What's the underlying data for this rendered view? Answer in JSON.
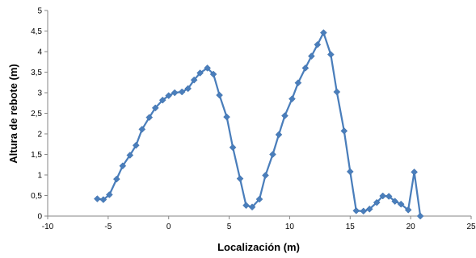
{
  "chart_data": {
    "type": "line",
    "xlabel": "Localización (m)",
    "ylabel": "Altura de rebote (m)",
    "xlim": [
      -10,
      25
    ],
    "ylim": [
      0,
      5
    ],
    "x_ticks": [
      "-10",
      "-5",
      "0",
      "5",
      "10",
      "15",
      "20",
      "25"
    ],
    "y_ticks": [
      "0",
      "0,5",
      "1",
      "1,5",
      "2",
      "2,5",
      "3",
      "3,5",
      "4",
      "4,5",
      "5"
    ],
    "grid": false,
    "legend": "none",
    "series": [
      {
        "color": "#4a7ebb",
        "marker": "diamond",
        "points": [
          [
            -5.9,
            0.42
          ],
          [
            -5.4,
            0.4
          ],
          [
            -4.9,
            0.52
          ],
          [
            -4.3,
            0.9
          ],
          [
            -3.8,
            1.22
          ],
          [
            -3.2,
            1.48
          ],
          [
            -2.7,
            1.72
          ],
          [
            -2.2,
            2.11
          ],
          [
            -1.6,
            2.4
          ],
          [
            -1.1,
            2.63
          ],
          [
            -0.5,
            2.82
          ],
          [
            0.0,
            2.93
          ],
          [
            0.5,
            3.0
          ],
          [
            1.1,
            3.02
          ],
          [
            1.6,
            3.1
          ],
          [
            2.1,
            3.31
          ],
          [
            2.6,
            3.48
          ],
          [
            3.2,
            3.6
          ],
          [
            3.7,
            3.45
          ],
          [
            4.2,
            2.94
          ],
          [
            4.8,
            2.41
          ],
          [
            5.3,
            1.67
          ],
          [
            5.9,
            0.91
          ],
          [
            6.4,
            0.26
          ],
          [
            6.9,
            0.22
          ],
          [
            7.5,
            0.41
          ],
          [
            8.0,
            0.99
          ],
          [
            8.6,
            1.5
          ],
          [
            9.1,
            1.98
          ],
          [
            9.6,
            2.44
          ],
          [
            10.2,
            2.85
          ],
          [
            10.7,
            3.24
          ],
          [
            11.3,
            3.6
          ],
          [
            11.8,
            3.89
          ],
          [
            12.3,
            4.17
          ],
          [
            12.8,
            4.46
          ],
          [
            13.4,
            3.93
          ],
          [
            13.9,
            3.02
          ],
          [
            14.5,
            2.07
          ],
          [
            15.0,
            1.08
          ],
          [
            15.5,
            0.13
          ],
          [
            16.1,
            0.12
          ],
          [
            16.6,
            0.17
          ],
          [
            17.2,
            0.33
          ],
          [
            17.7,
            0.49
          ],
          [
            18.2,
            0.48
          ],
          [
            18.7,
            0.36
          ],
          [
            19.2,
            0.29
          ],
          [
            19.8,
            0.15
          ],
          [
            20.3,
            1.07
          ],
          [
            20.8,
            0.0
          ]
        ]
      }
    ]
  }
}
